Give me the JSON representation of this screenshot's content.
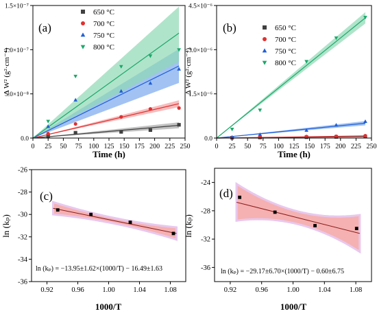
{
  "chart_data": [
    {
      "type": "scatter",
      "panel_label": "(a)",
      "xlabel": "Time (h)",
      "ylabel": "Δ W² (g²·cm⁻⁴)",
      "xlim": [
        0,
        250
      ],
      "ylim": [
        0,
        1.5e-07
      ],
      "x_ticks": [
        "0",
        "25",
        "50",
        "75",
        "100",
        "125",
        "150",
        "175",
        "200",
        "225",
        "250"
      ],
      "y_ticks": [
        "0.0",
        "5.0×10⁻⁸",
        "1.0×10⁻⁷",
        "1.5×10⁻⁷"
      ],
      "y_tick_values": [
        0,
        5e-08,
        1e-07,
        1.5e-07
      ],
      "legend_position": "top-left",
      "series": [
        {
          "name": "650 °C",
          "color": "#404040",
          "marker": "square",
          "x": [
            25,
            70,
            145,
            193,
            240
          ],
          "y": [
            2e-09,
            6e-09,
            7e-09,
            9e-09,
            1.5e-08
          ],
          "fit_slope": 6e-11,
          "band_slope_low": 4.6e-11,
          "band_slope_high": 7.4e-11,
          "band_color": "#a8a8a8"
        },
        {
          "name": "700 °C",
          "color": "#e03030",
          "marker": "circle",
          "x": [
            25,
            70,
            145,
            193,
            240
          ],
          "y": [
            5e-09,
            1.6e-08,
            2.4e-08,
            3.3e-08,
            3.4e-08
          ],
          "fit_slope": 1.62e-10,
          "band_slope_low": 1.46e-10,
          "band_slope_high": 1.78e-10,
          "band_color": "#f4a0a0"
        },
        {
          "name": "750 °C",
          "color": "#1f5fd6",
          "marker": "triangle-up",
          "x": [
            25,
            70,
            145,
            193,
            240
          ],
          "y": [
            1.3e-08,
            4.3e-08,
            5.3e-08,
            6.2e-08,
            7.8e-08
          ],
          "fit_slope": 3.4e-10,
          "band_slope_low": 2.6e-10,
          "band_slope_high": 4.2e-10,
          "band_color": "#7aa8ee"
        },
        {
          "name": "800 °C",
          "color": "#1aa86a",
          "marker": "triangle-down",
          "x": [
            25,
            70,
            145,
            193,
            240
          ],
          "y": [
            1.9e-08,
            7e-08,
            8.1e-08,
            9.3e-08,
            1e-07
          ],
          "fit_slope": 4.95e-10,
          "band_slope_low": 3.6e-10,
          "band_slope_high": 6.2e-10,
          "band_color": "#8fd8b4"
        }
      ]
    },
    {
      "type": "scatter",
      "panel_label": "(b)",
      "xlabel": "Time (h)",
      "ylabel": "Δ W² (g²·cm⁻⁴)",
      "xlim": [
        0,
        250
      ],
      "ylim": [
        0,
        4.5e-06
      ],
      "x_ticks": [
        "0",
        "25",
        "50",
        "75",
        "100",
        "125",
        "150",
        "175",
        "200",
        "225",
        "250"
      ],
      "y_ticks": [
        "0.0",
        "1.5×10⁻⁶",
        "3.0×10⁻⁶",
        "4.5×10⁻⁶"
      ],
      "y_tick_values": [
        0,
        1.5e-06,
        3e-06,
        4.5e-06
      ],
      "legend_position": "top-left",
      "series": [
        {
          "name": "650 °C",
          "color": "#404040",
          "marker": "square",
          "x": [
            25,
            70,
            145,
            193,
            240
          ],
          "y": [
            1e-08,
            2e-08,
            3e-08,
            4e-08,
            5e-08
          ],
          "fit_slope": 2e-10,
          "band_slope_low": 1.6e-10,
          "band_slope_high": 2.4e-10,
          "band_color": "#a8a8a8"
        },
        {
          "name": "700 °C",
          "color": "#e03030",
          "marker": "circle",
          "x": [
            25,
            70,
            145,
            193,
            240
          ],
          "y": [
            1e-08,
            3e-08,
            5e-08,
            6e-08,
            8e-08
          ],
          "fit_slope": 3e-10,
          "band_slope_low": 2.5e-10,
          "band_slope_high": 3.5e-10,
          "band_color": "#f4a0a0"
        },
        {
          "name": "750 °C",
          "color": "#1f5fd6",
          "marker": "triangle-up",
          "x": [
            25,
            70,
            145,
            193,
            240
          ],
          "y": [
            3e-08,
            1.2e-07,
            2.6e-07,
            4.4e-07,
            5.6e-07
          ],
          "fit_slope": 2.1e-09,
          "band_slope_low": 1.8e-09,
          "band_slope_high": 2.4e-09,
          "band_color": "#7aa8ee"
        },
        {
          "name": "800 °C",
          "color": "#1aa86a",
          "marker": "triangle-down",
          "x": [
            25,
            70,
            145,
            193,
            240
          ],
          "y": [
            3e-07,
            9.5e-07,
            2.6e-06,
            3.4e-06,
            4.1e-06
          ],
          "fit_slope": 1.7e-08,
          "band_slope_low": 1.62e-08,
          "band_slope_high": 1.78e-08,
          "band_color": "#8fd8b4"
        }
      ]
    },
    {
      "type": "scatter",
      "panel_label": "(c)",
      "xlabel": "1000/T",
      "ylabel": "ln (kₚ)",
      "xlim": [
        0.9,
        1.1
      ],
      "ylim": [
        -36,
        -26
      ],
      "x_ticks": [
        "0.92",
        "0.96",
        "1.00",
        "1.04",
        "1.08"
      ],
      "x_tick_values": [
        0.92,
        0.96,
        1.0,
        1.04,
        1.08
      ],
      "y_ticks": [
        "-36",
        "-34",
        "-32",
        "-30",
        "-28",
        "-26"
      ],
      "y_tick_values": [
        -36,
        -34,
        -32,
        -30,
        -28,
        -26
      ],
      "points": {
        "x": [
          0.934,
          0.977,
          1.028,
          1.084
        ],
        "y": [
          -29.6,
          -30.0,
          -30.7,
          -31.7
        ]
      },
      "fit": {
        "x": [
          0.928,
          1.088
        ],
        "y": [
          -29.45,
          -31.7
        ]
      },
      "band_halfwidth_edge": 0.55,
      "band_halfwidth_center": 0.25,
      "band_color": "#f3a3a3",
      "equation": "ln (kₚ) = −13.95±1.62×(1000/T) − 16.49±1.63"
    },
    {
      "type": "scatter",
      "panel_label": "(d)",
      "xlabel": "1000/T",
      "ylabel": "ln (kₚ)",
      "xlim": [
        0.9,
        1.1
      ],
      "ylim": [
        -38,
        -22
      ],
      "x_ticks": [
        "0.92",
        "0.96",
        "1.00",
        "1.04",
        "1.08"
      ],
      "x_tick_values": [
        0.92,
        0.96,
        1.0,
        1.04,
        1.08
      ],
      "y_ticks": [
        "-36",
        "-32",
        "-28",
        "-24"
      ],
      "y_tick_values": [
        -36,
        -32,
        -28,
        -24
      ],
      "points": {
        "x": [
          0.932,
          0.977,
          1.028,
          1.081
        ],
        "y": [
          -26.1,
          -28.2,
          -30.1,
          -30.5
        ]
      },
      "fit": {
        "x": [
          0.928,
          1.085
        ],
        "y": [
          -26.8,
          -31.2
        ]
      },
      "band_halfwidth_edge": 2.6,
      "band_halfwidth_center": 0.9,
      "band_color": "#f3a3a3",
      "equation": "ln (kₚ) = −29.17±6.70×(1000/T) − 0.60±6.75"
    }
  ]
}
